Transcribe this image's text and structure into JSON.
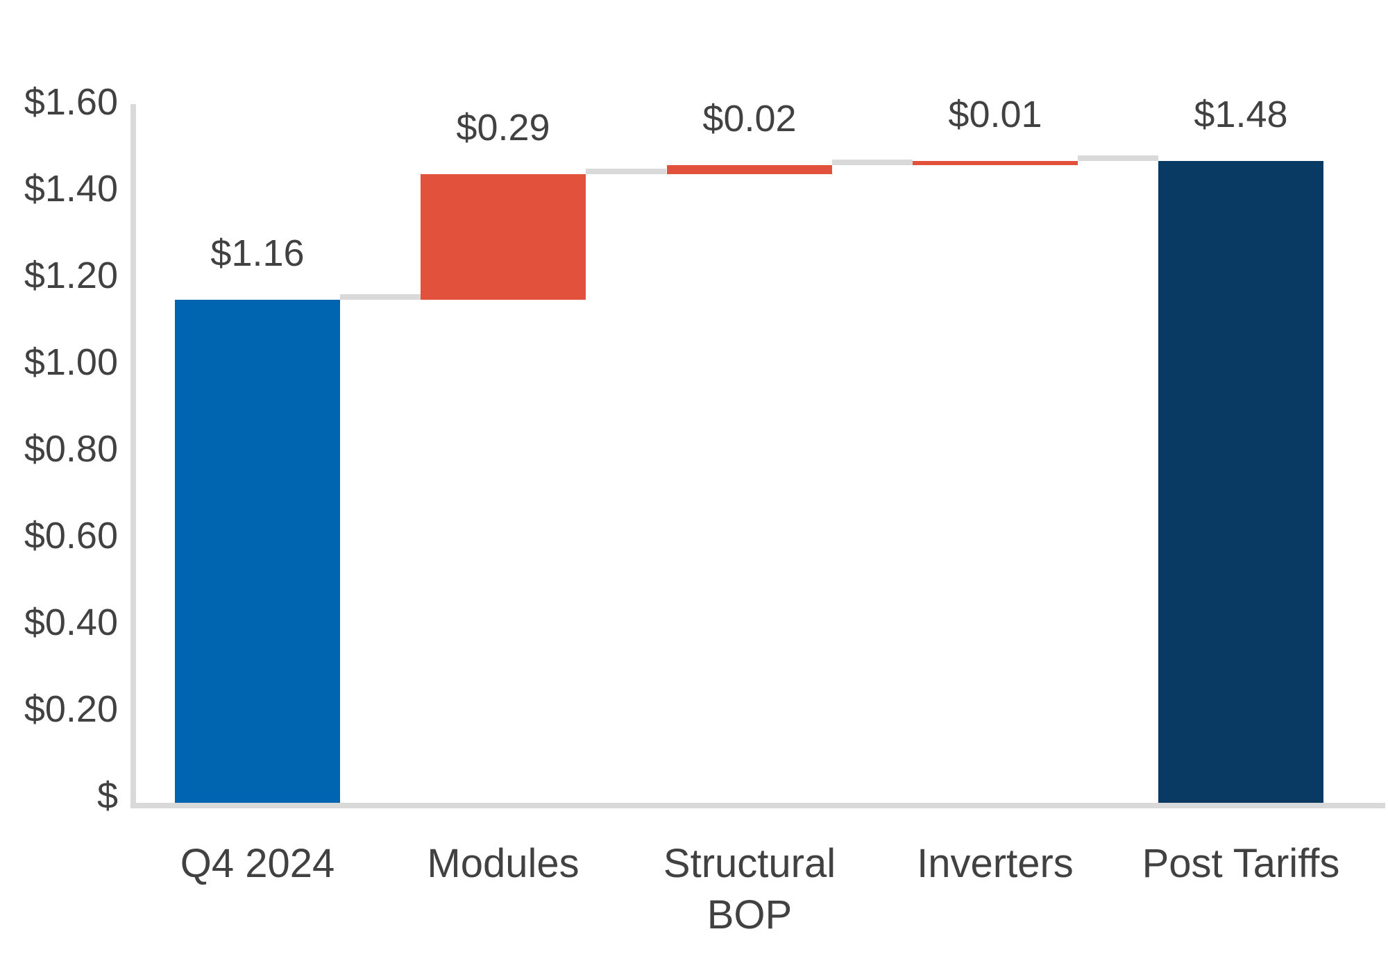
{
  "chart_data": {
    "type": "bar",
    "subtype": "waterfall",
    "title": "",
    "categories": [
      "Q4 2024",
      "Modules",
      "Structural BOP",
      "Inverters",
      "Post Tariffs"
    ],
    "bars": [
      {
        "category": "Q4 2024",
        "data_label": "$1.16",
        "start": 0,
        "end": 1.16,
        "delta": 1.16,
        "role": "base",
        "color_key": "base"
      },
      {
        "category": "Modules",
        "data_label": "$0.29",
        "start": 1.16,
        "end": 1.45,
        "delta": 0.29,
        "role": "increase",
        "color_key": "increase"
      },
      {
        "category": "Structural BOP",
        "data_label": "$0.02",
        "start": 1.45,
        "end": 1.47,
        "delta": 0.02,
        "role": "increase",
        "color_key": "increase"
      },
      {
        "category": "Inverters",
        "data_label": "$0.01",
        "start": 1.47,
        "end": 1.48,
        "delta": 0.01,
        "role": "increase",
        "color_key": "increase"
      },
      {
        "category": "Post Tariffs",
        "data_label": "$1.48",
        "start": 0,
        "end": 1.48,
        "delta": 1.48,
        "role": "total",
        "color_key": "total"
      }
    ],
    "y_axis": {
      "min": 0,
      "max": 1.6,
      "step": 0.2,
      "ticks": [
        {
          "v": 1.6,
          "label": "$1.60"
        },
        {
          "v": 1.4,
          "label": "$1.40"
        },
        {
          "v": 1.2,
          "label": "$1.20"
        },
        {
          "v": 1.0,
          "label": "$1.00"
        },
        {
          "v": 0.8,
          "label": "$0.80"
        },
        {
          "v": 0.6,
          "label": "$0.60"
        },
        {
          "v": 0.4,
          "label": "$0.40"
        },
        {
          "v": 0.2,
          "label": "$0.20"
        },
        {
          "v": 0.0,
          "label": "$"
        }
      ]
    },
    "x_axis": {
      "labels": [
        "Q4 2024",
        "Modules",
        "Structural BOP",
        "Inverters",
        "Post Tariffs"
      ]
    },
    "grid": false,
    "legend": false,
    "colors": {
      "base": "#0065B1",
      "increase": "#E2513B",
      "total": "#093A63",
      "connector": "#D9D9D9",
      "axis": "#D9D9D9",
      "text": "#414141"
    }
  }
}
